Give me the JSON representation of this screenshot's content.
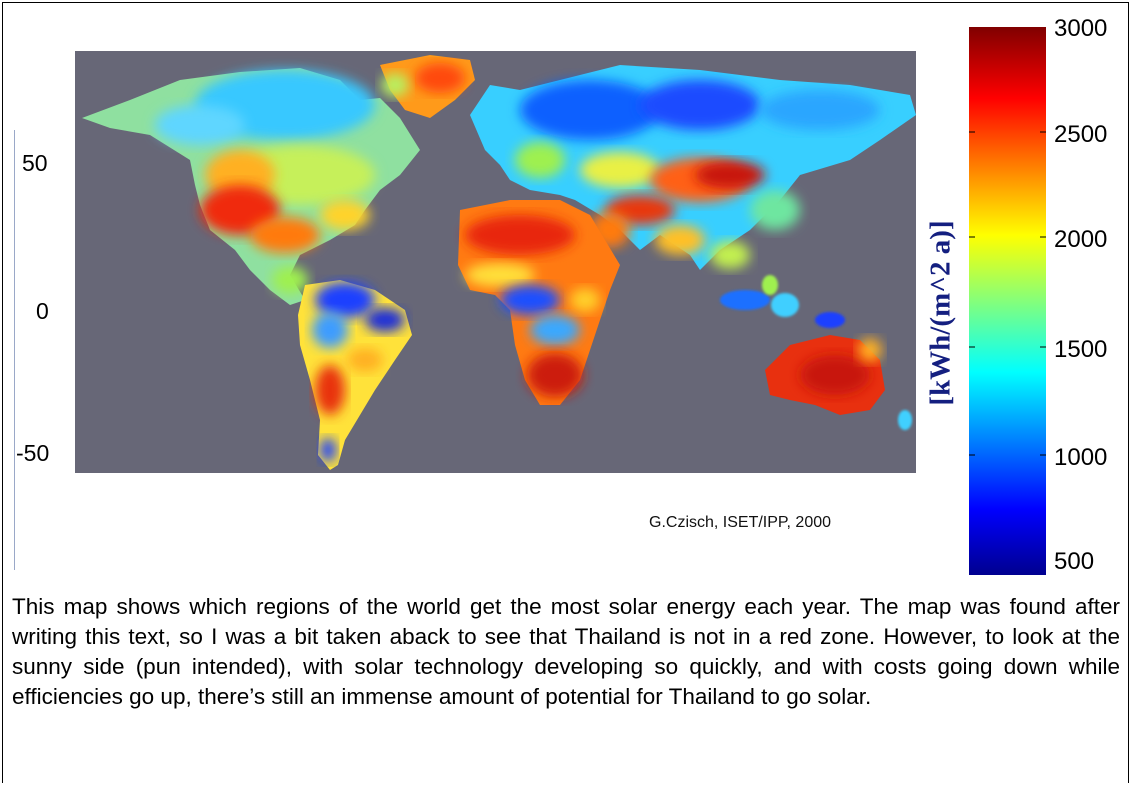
{
  "map": {
    "latitude_labels": [
      "50",
      "0",
      "-50"
    ],
    "background_color": "#676777",
    "credit": "G.Czisch, ISET/IPP, 2000"
  },
  "colorbar": {
    "unit_label": "[kWh/(m^2 a)]",
    "tick_labels": [
      "3000",
      "2500",
      "2000",
      "1500",
      "1000",
      "500"
    ],
    "range": [
      500,
      3000
    ],
    "colormap": "jet",
    "colors": [
      "#00008f",
      "#0000ff",
      "#00ffff",
      "#ffff00",
      "#ff0000",
      "#800000"
    ]
  },
  "caption": "This map shows which regions of the world get the most solar energy each year. The map was found after writing this text, so I was a bit taken aback to see that Thailand is not in a red zone.  However, to look at the sunny side (pun intended), with solar technology developing so quickly, and with costs going down while efficiencies go up, there’s still an immense amount of potential for Thailand to go solar."
}
